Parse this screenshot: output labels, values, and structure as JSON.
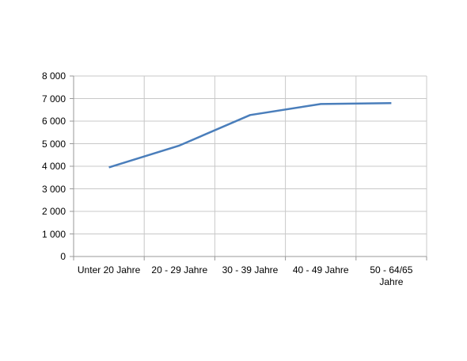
{
  "chart_data": {
    "type": "line",
    "categories": [
      "Unter 20 Jahre",
      "20 - 29 Jahre",
      "30 - 39 Jahre",
      "40 - 49 Jahre",
      "50 - 64/65 Jahre"
    ],
    "series": [
      {
        "color": "#4a7ebb",
        "values": [
          3950,
          4920,
          6270,
          6760,
          6800
        ]
      }
    ],
    "ylim": [
      0,
      8000
    ],
    "yticks": [
      0,
      {
        "value": 1000,
        "label": "1 000"
      },
      {
        "value": 2000,
        "label": "2 000"
      },
      {
        "value": 3000,
        "label": "3 000"
      },
      {
        "value": 4000,
        "label": "4 000"
      },
      {
        "value": 5000,
        "label": "5 000"
      },
      {
        "value": 6000,
        "label": "6 000"
      },
      {
        "value": 7000,
        "label": "7 000"
      },
      {
        "value": 8000,
        "label": "8 000"
      }
    ],
    "grid": true
  }
}
